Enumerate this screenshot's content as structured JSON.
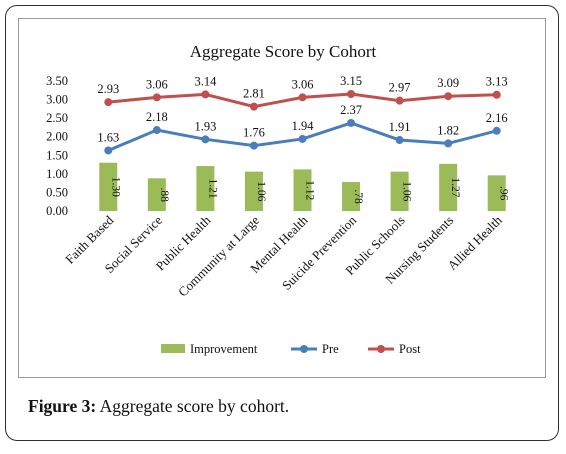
{
  "caption": {
    "label": "Figure 3:",
    "text": " Aggregate score by cohort."
  },
  "chart_data": {
    "type": "bar+line",
    "title": "Aggregate  Score by Cohort",
    "xlabel": "",
    "ylabel": "",
    "ylim": [
      0,
      3.5
    ],
    "yticks": [
      "0.00",
      "0.50",
      "1.00",
      "1.50",
      "2.00",
      "2.50",
      "3.00",
      "3.50"
    ],
    "grid": false,
    "legend_position": "bottom",
    "categories": [
      "Faith Based",
      "Social Service",
      "Public Health",
      "Community at Large",
      "Mental Health",
      "Suicide Prevention",
      "Public Schools",
      "Nursing Students",
      "Allied Health"
    ],
    "series": [
      {
        "name": "Improvement",
        "type": "bar",
        "color": "#9bbb59",
        "values": [
          1.3,
          0.88,
          1.21,
          1.06,
          1.12,
          0.78,
          1.06,
          1.27,
          0.96
        ],
        "labels": [
          "1.30",
          ".88",
          "1.21",
          "1.06",
          "1.12",
          ".78",
          "1.06",
          "1.27",
          ".96"
        ]
      },
      {
        "name": "Pre",
        "type": "line",
        "color": "#4a7ebb",
        "values": [
          1.63,
          2.18,
          1.93,
          1.76,
          1.94,
          2.37,
          1.91,
          1.82,
          2.16
        ],
        "labels": [
          "1.63",
          "2.18",
          "1.93",
          "1.76",
          "1.94",
          "2.37",
          "1.91",
          "1.82",
          "2.16"
        ]
      },
      {
        "name": "Post",
        "type": "line",
        "color": "#c0504d",
        "values": [
          2.93,
          3.06,
          3.14,
          2.81,
          3.06,
          3.15,
          2.97,
          3.09,
          3.13
        ],
        "labels": [
          "2.93",
          "3.06",
          "3.14",
          "2.81",
          "3.06",
          "3.15",
          "2.97",
          "3.09",
          "3.13"
        ]
      }
    ]
  }
}
